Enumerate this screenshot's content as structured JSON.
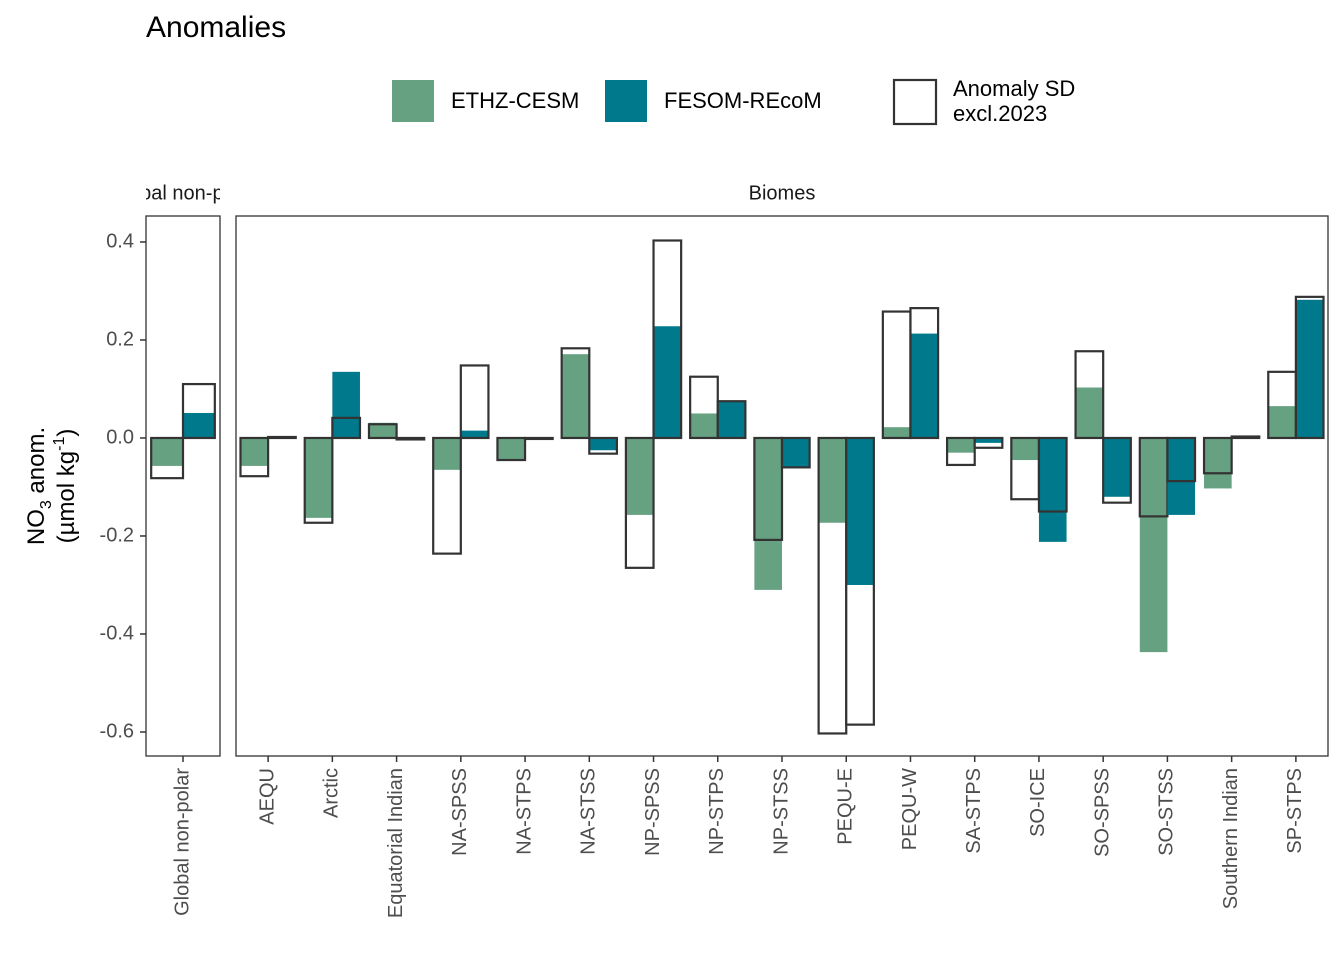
{
  "chart_data": {
    "type": "bar",
    "title": "Anomalies",
    "ylabel": [
      [
        "NO",
        "3",
        " anom."
      ],
      [
        "(µmol kg",
        "-1",
        ")"
      ]
    ],
    "ylim": [
      -0.649,
      0.453
    ],
    "yticks": [
      -0.6,
      -0.4,
      -0.2,
      {
        "value": 0,
        "label": "0.0"
      },
      0.2,
      0.4
    ],
    "facets": [
      "Global non-polar",
      "Biomes"
    ],
    "categories": [
      [
        "Global non-polar"
      ],
      [
        "AEQU",
        "Arctic",
        "Equatorial Indian",
        "NA-SPSS",
        "NA-STPS",
        "NA-STSS",
        "NP-SPSS",
        "NP-STPS",
        "NP-STSS",
        "PEQU-E",
        "PEQU-W",
        "SA-STPS",
        "SO-ICE",
        "SO-SPSS",
        "SO-STSS",
        "Southern Indian",
        "SP-STPS"
      ]
    ],
    "sd_name": [
      "Anomaly SD",
      "excl.2023"
    ],
    "series": [
      {
        "name": "ETHZ-CESM",
        "color": "#66a182",
        "values": [
          [
            -0.057
          ],
          [
            -0.057,
            -0.163,
            0.031,
            -0.065,
            -0.045,
            0.171,
            -0.157,
            0.05,
            -0.31,
            -0.173,
            0.022,
            -0.03,
            -0.045,
            0.103,
            -0.437,
            -0.103,
            0.065
          ]
        ],
        "sd": [
          [
            -0.082
          ],
          [
            -0.078,
            -0.173,
            0.028,
            -0.236,
            -0.045,
            0.183,
            -0.265,
            0.125,
            -0.208,
            -0.603,
            0.258,
            -0.055,
            -0.125,
            0.177,
            -0.16,
            -0.072,
            0.135
          ]
        ]
      },
      {
        "name": "FESOM-REcoM",
        "color": "#00798c",
        "values": [
          [
            0.051
          ],
          [
            0,
            0.135,
            -0.003,
            0.015,
            -0.002,
            -0.025,
            0.228,
            0.075,
            -0.06,
            -0.3,
            0.213,
            -0.01,
            -0.212,
            -0.12,
            -0.157,
            0.003,
            0.282
          ]
        ],
        "sd": [
          [
            0.11
          ],
          [
            0.002,
            0.041,
            -0.003,
            0.148,
            -0.002,
            -0.032,
            0.403,
            0.075,
            -0.06,
            -0.585,
            0.265,
            -0.02,
            -0.15,
            -0.132,
            -0.088,
            0.003,
            0.288
          ]
        ]
      }
    ]
  }
}
